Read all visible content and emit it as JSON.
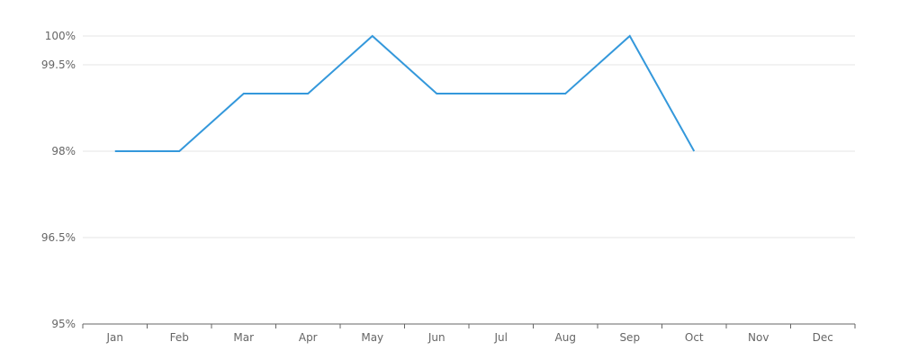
{
  "chart_data": {
    "type": "line",
    "title": "",
    "xlabel": "",
    "ylabel": "",
    "categories": [
      "Jan",
      "Feb",
      "Mar",
      "Apr",
      "May",
      "Jun",
      "Jul",
      "Aug",
      "Sep",
      "Oct",
      "Nov",
      "Dec"
    ],
    "series": [
      {
        "values": [
          98,
          98,
          99,
          99,
          100,
          99,
          99,
          99,
          100,
          98,
          null,
          null
        ],
        "color": "#3498db"
      }
    ],
    "ylim": [
      95,
      100.5
    ],
    "y_ticks": [
      {
        "value": 95,
        "label": "95%"
      },
      {
        "value": 96.5,
        "label": "96.5%"
      },
      {
        "value": 98,
        "label": "98%"
      },
      {
        "value": 99.5,
        "label": "99.5%"
      },
      {
        "value": 100,
        "label": "100%"
      }
    ],
    "grid": true,
    "legend": "none"
  }
}
